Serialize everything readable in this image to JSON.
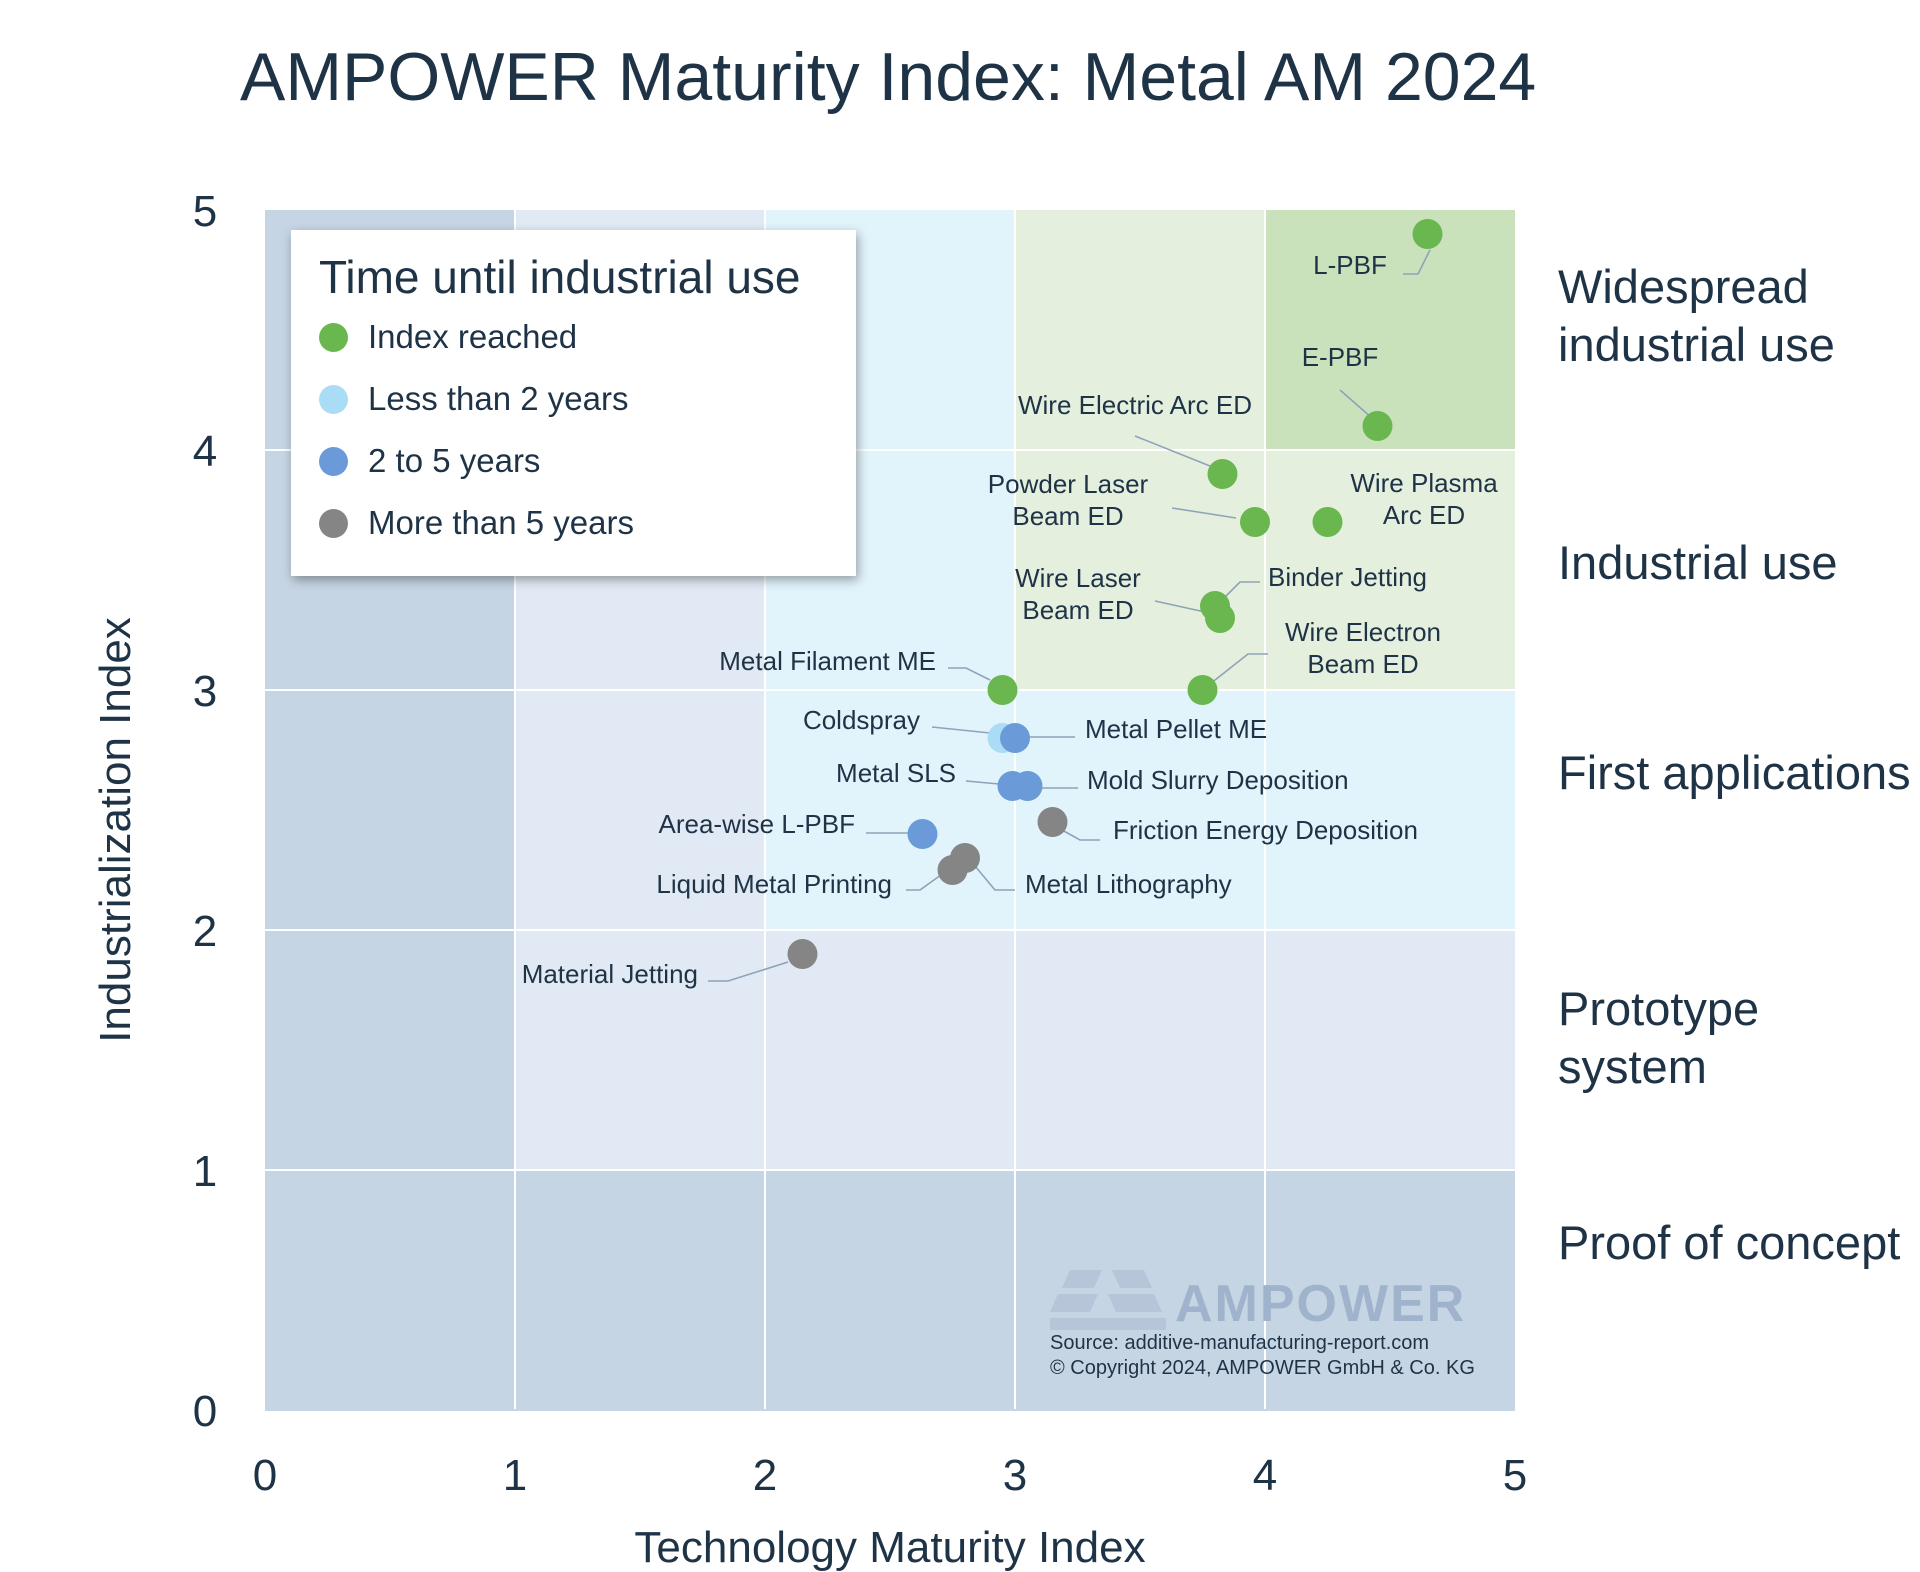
{
  "colors": {
    "index_reached": "#6ab74f",
    "less_than_2": "#aadcf6",
    "two_to_five": "#6a9bd8",
    "more_than_5": "#858585",
    "text": "#1f3347"
  },
  "legend": {
    "title": "Time until industrial use",
    "items": [
      {
        "label": "Index reached",
        "color": "#6ab74f"
      },
      {
        "label": "Less than 2 years",
        "color": "#aadcf6"
      },
      {
        "label": "2 to 5 years",
        "color": "#6a9bd8"
      },
      {
        "label": "More than 5 years",
        "color": "#858585"
      }
    ]
  },
  "stages": {
    "widespread": "Widespread industrial use",
    "industrial": "Industrial use",
    "first": "First applications",
    "prototype": "Prototype system",
    "proof": "Proof of concept"
  },
  "watermark": {
    "brand": "AMPOWER",
    "source": "Source: additive-manufacturing-report.com",
    "copyright": "© Copyright 2024, AMPOWER GmbH & Co. KG"
  },
  "chart_data": {
    "type": "scatter",
    "title": "AMPOWER Maturity Index: Metal AM 2024",
    "xlabel": "Technology Maturity Index",
    "ylabel": "Industrialization Index",
    "xlim": [
      0,
      5
    ],
    "ylim": [
      0,
      5
    ],
    "xticks": [
      "0",
      "1",
      "2",
      "3",
      "4",
      "5"
    ],
    "yticks": [
      "0",
      "1",
      "2",
      "3",
      "4",
      "5"
    ],
    "grid": true,
    "legend_position": "top-left",
    "series": [
      {
        "name": "Index reached",
        "color": "#6ab74f",
        "points": [
          {
            "label": "L-PBF",
            "x": 4.65,
            "y": 4.9
          },
          {
            "label": "E-PBF",
            "x": 4.45,
            "y": 4.1
          },
          {
            "label": "Wire Electric Arc ED",
            "x": 3.83,
            "y": 3.9
          },
          {
            "label": "Powder Laser Beam ED",
            "x": 3.96,
            "y": 3.7
          },
          {
            "label": "Wire Plasma Arc ED",
            "x": 4.25,
            "y": 3.7
          },
          {
            "label": "Wire Laser Beam ED",
            "x": 3.8,
            "y": 3.35
          },
          {
            "label": "Binder Jetting",
            "x": 3.82,
            "y": 3.3
          },
          {
            "label": "Metal Filament ME",
            "x": 2.95,
            "y": 3.0
          },
          {
            "label": "Wire Electron Beam ED",
            "x": 3.75,
            "y": 3.0
          }
        ]
      },
      {
        "name": "Less than 2 years",
        "color": "#aadcf6",
        "points": [
          {
            "label": "Coldspray",
            "x": 2.95,
            "y": 2.8
          }
        ]
      },
      {
        "name": "2 to 5 years",
        "color": "#6a9bd8",
        "points": [
          {
            "label": "Metal Pellet ME",
            "x": 3.0,
            "y": 2.8
          },
          {
            "label": "Metal SLS",
            "x": 2.99,
            "y": 2.6
          },
          {
            "label": "Mold Slurry Deposition",
            "x": 3.05,
            "y": 2.6
          },
          {
            "label": "Area-wise L-PBF",
            "x": 2.63,
            "y": 2.4
          }
        ]
      },
      {
        "name": "More than 5 years",
        "color": "#858585",
        "points": [
          {
            "label": "Friction Energy Deposition",
            "x": 3.15,
            "y": 2.45
          },
          {
            "label": "Metal Lithography",
            "x": 2.8,
            "y": 2.3
          },
          {
            "label": "Liquid Metal Printing",
            "x": 2.75,
            "y": 2.25
          },
          {
            "label": "Material Jetting",
            "x": 2.15,
            "y": 1.9
          }
        ]
      }
    ]
  }
}
